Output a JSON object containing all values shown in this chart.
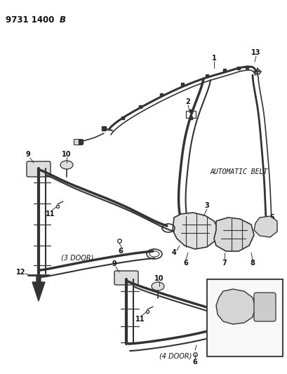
{
  "title": "9731 1400 B",
  "background_color": "#ffffff",
  "line_color": "#333333",
  "text_color": "#111111",
  "label_automatic_belt": "AUTOMATIC BELT",
  "label_3door": "(3 DOOR)",
  "label_4door": "(4 DOOR)",
  "fig_width": 4.1,
  "fig_height": 5.33,
  "dpi": 100
}
